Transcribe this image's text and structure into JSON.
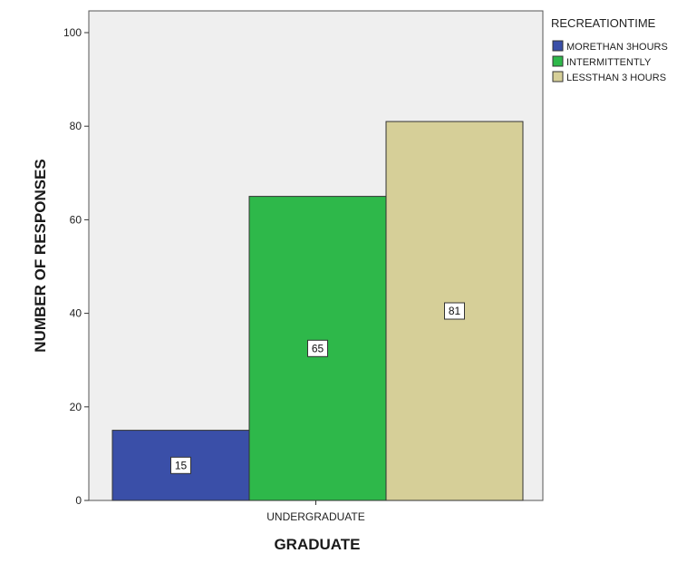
{
  "chart_data": {
    "type": "bar",
    "categories": [
      "UNDERGRADUATE"
    ],
    "xlabel": "GRADUATE",
    "ylabel": "NUMBER OF RESPONSES",
    "ylim": [
      0,
      100
    ],
    "yticks": [
      0,
      20,
      40,
      60,
      80,
      100
    ],
    "grid": false,
    "legend": {
      "title": "RECREATIONTIME",
      "position": "top-right"
    },
    "series": [
      {
        "name": "MORETHAN 3HOURS",
        "values": [
          15
        ],
        "color": "#3a4fa8"
      },
      {
        "name": "INTERMITTENTLY",
        "values": [
          65
        ],
        "color": "#2eb84a"
      },
      {
        "name": "LESSTHAN 3 HOURS",
        "values": [
          81
        ],
        "color": "#d6cf98"
      }
    ],
    "data_labels": [
      "15",
      "65",
      "81"
    ]
  },
  "colors": {
    "plot_background": "#efefef"
  }
}
